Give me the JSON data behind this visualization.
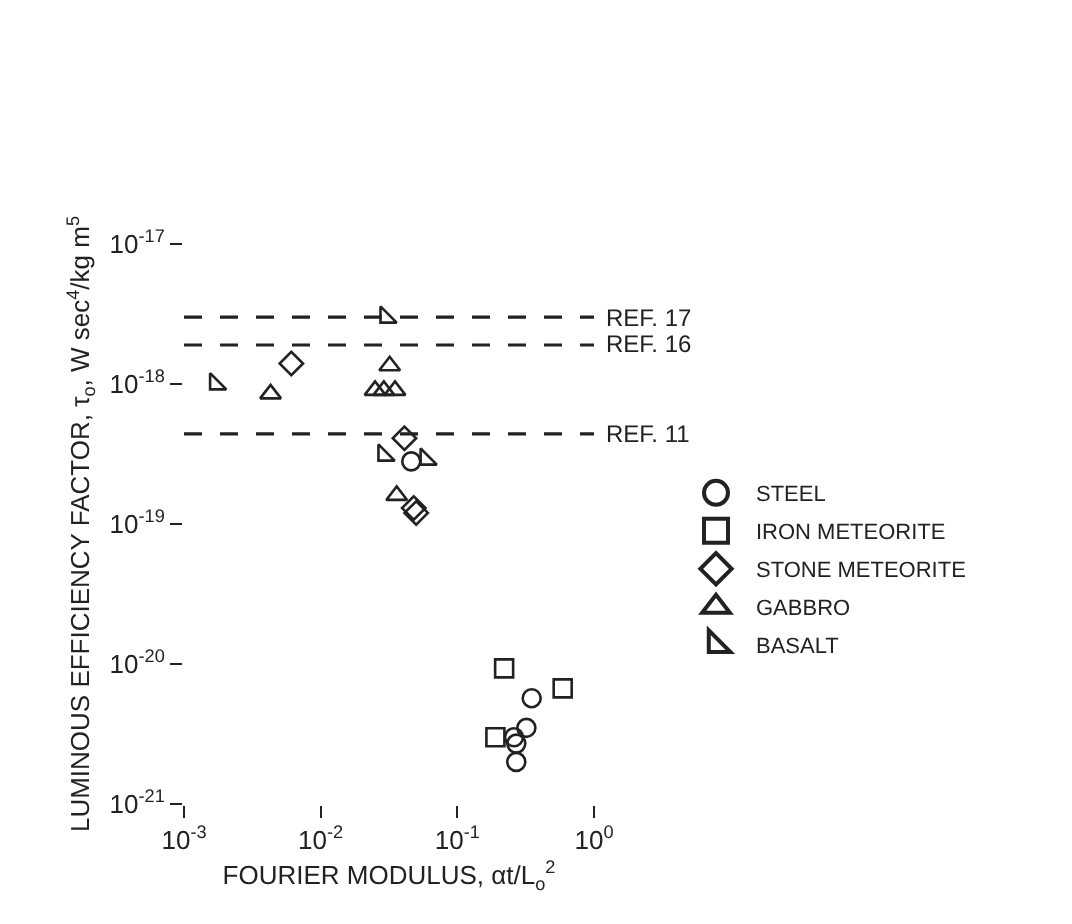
{
  "chart_data": {
    "type": "scatter",
    "xlabel": "FOURIER MODULUS, αt/L$_{o}$$^{2}$",
    "ylabel": "LUMINOUS EFFICIENCY FACTOR, τ$_{o}$, W sec$^{4}$/kg m$^{5}$",
    "log": "xy",
    "xlim": [
      0.001,
      1
    ],
    "xticks": [
      {
        "value": 0.001,
        "label": "10$^{-3}$"
      },
      {
        "value": 0.01,
        "label": "10$^{-2}$"
      },
      {
        "value": 0.1,
        "label": "10$^{-1}$"
      },
      {
        "value": 1,
        "label": "10$^{0}$"
      }
    ],
    "ylim": [
      1e-21,
      1e-17
    ],
    "yticks": [
      {
        "value": 1e-21,
        "label": "10$^{-21}$"
      },
      {
        "value": 1e-20,
        "label": "10$^{-20}$"
      },
      {
        "value": 1e-19,
        "label": "10$^{-19}$"
      },
      {
        "value": 1e-18,
        "label": "10$^{-18}$"
      },
      {
        "value": 1e-17,
        "label": "10$^{-17}$"
      }
    ],
    "grid": false,
    "legend": "right",
    "series": [
      {
        "name": "STEEL",
        "color": "#222222",
        "marker": "circle",
        "x": [
          0.046,
          0.35,
          0.26,
          0.32,
          0.27,
          0.27
        ],
        "values": [
          2.8e-19,
          5.7e-21,
          3e-21,
          3.5e-21,
          2.7e-21,
          2e-21
        ]
      },
      {
        "name": "IRON METEORITE",
        "color": "#222222",
        "marker": "square",
        "x": [
          0.22,
          0.59,
          0.19
        ],
        "values": [
          9.3e-21,
          6.7e-21,
          3e-21
        ]
      },
      {
        "name": "STONE METEORITE",
        "color": "#222222",
        "marker": "diamond",
        "x": [
          0.0061,
          0.041,
          0.05,
          0.048
        ],
        "values": [
          1.4e-18,
          4.1e-19,
          1.2e-19,
          1.3e-19
        ]
      },
      {
        "name": "GABBRO",
        "color": "#222222",
        "marker": "triangle",
        "x": [
          0.0043,
          0.032,
          0.025,
          0.029,
          0.035,
          0.036
        ],
        "values": [
          8.5e-19,
          1.35e-18,
          9e-19,
          9e-19,
          9e-19,
          1.6e-19
        ]
      },
      {
        "name": "BASALT",
        "color": "#222222",
        "marker": "triangle-sw",
        "x": [
          0.0017,
          0.03,
          0.029,
          0.059
        ],
        "values": [
          1e-18,
          3e-18,
          3.1e-19,
          2.9e-19
        ]
      }
    ],
    "ref_lines": [
      {
        "axis": "y",
        "value": 3e-18,
        "label": "REF. 17",
        "color": "#222222",
        "line_style": "dashed"
      },
      {
        "axis": "y",
        "value": 1.9e-18,
        "label": "REF. 16",
        "color": "#222222",
        "line_style": "dashed"
      },
      {
        "axis": "y",
        "value": 4.4e-19,
        "label": "REF. 11",
        "color": "#222222",
        "line_style": "dashed"
      }
    ]
  }
}
